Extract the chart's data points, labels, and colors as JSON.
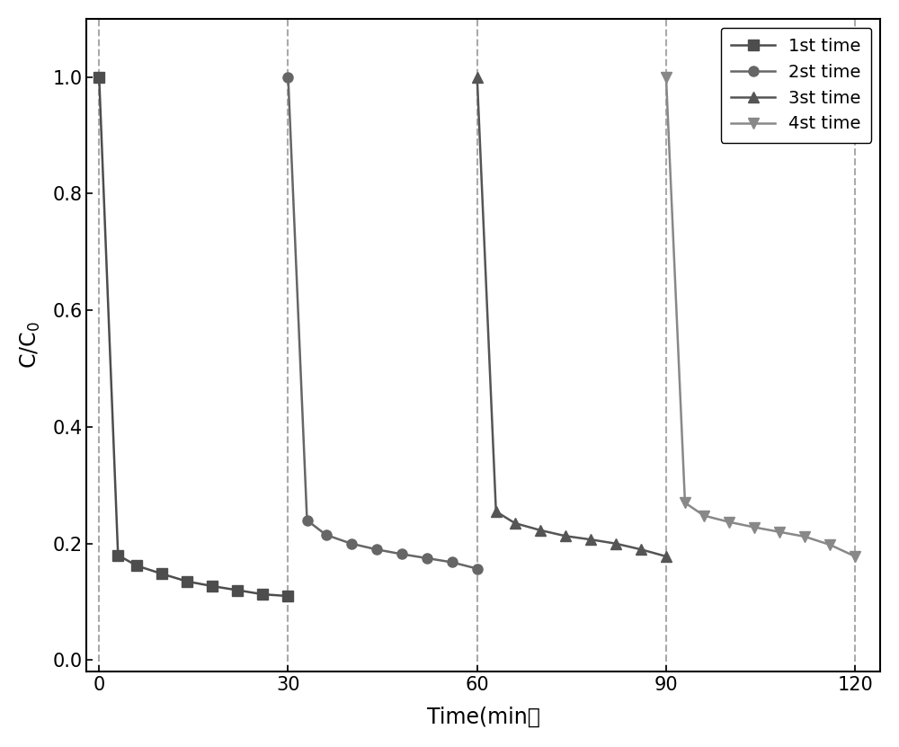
{
  "series": [
    {
      "label": "1st time",
      "marker": "s",
      "color": "#4d4d4d",
      "x": [
        0,
        3,
        6,
        10,
        14,
        18,
        22,
        26,
        30
      ],
      "y": [
        1.0,
        0.18,
        0.162,
        0.148,
        0.135,
        0.127,
        0.12,
        0.113,
        0.11
      ]
    },
    {
      "label": "2st time",
      "marker": "o",
      "color": "#666666",
      "x": [
        30,
        33,
        36,
        40,
        44,
        48,
        52,
        56,
        60
      ],
      "y": [
        1.0,
        0.24,
        0.215,
        0.2,
        0.19,
        0.182,
        0.175,
        0.168,
        0.157
      ]
    },
    {
      "label": "3st time",
      "marker": "^",
      "color": "#555555",
      "x": [
        60,
        63,
        66,
        70,
        74,
        78,
        82,
        86,
        90
      ],
      "y": [
        1.0,
        0.255,
        0.235,
        0.223,
        0.213,
        0.207,
        0.2,
        0.19,
        0.178
      ]
    },
    {
      "label": "4st time",
      "marker": "v",
      "color": "#888888",
      "x": [
        90,
        93,
        96,
        100,
        104,
        108,
        112,
        116,
        120
      ],
      "y": [
        1.0,
        0.27,
        0.248,
        0.237,
        0.228,
        0.22,
        0.212,
        0.198,
        0.178
      ]
    }
  ],
  "vlines": [
    0,
    30,
    60,
    90,
    120
  ],
  "xlabel": "Time(min）",
  "ylabel": "C/C$_0$",
  "xlim": [
    -2,
    124
  ],
  "ylim": [
    -0.02,
    1.1
  ],
  "xticks": [
    0,
    30,
    60,
    90,
    120
  ],
  "yticks": [
    0.0,
    0.2,
    0.4,
    0.6,
    0.8,
    1.0
  ],
  "line_width": 1.8,
  "marker_size": 8,
  "legend_fontsize": 14,
  "axis_fontsize": 17,
  "tick_fontsize": 15
}
